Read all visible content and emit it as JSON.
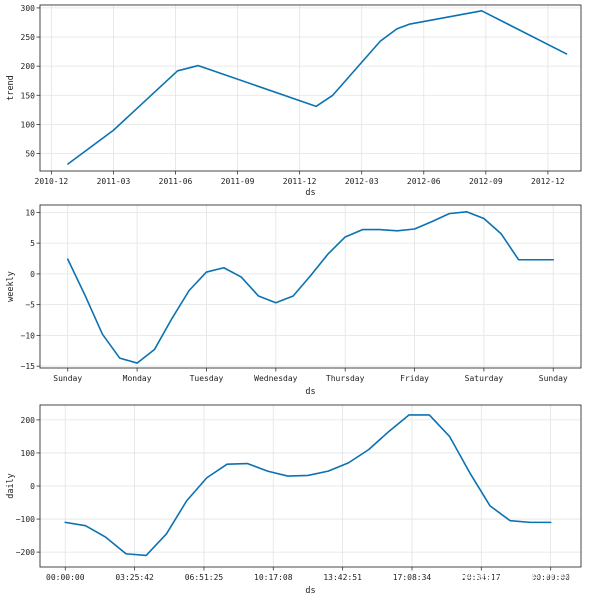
{
  "colors": {
    "line": "#0b72b2",
    "grid": "#e3e3e3",
    "frame": "#333333"
  },
  "watermark": "知乎 @HarHeimer",
  "chart_data": [
    {
      "type": "line",
      "id": "trend",
      "xlabel": "ds",
      "ylabel": "trend",
      "xlim": [
        -0.55,
        25.6
      ],
      "ylim": [
        20,
        305
      ],
      "xticks": [
        0,
        3,
        6,
        9,
        12,
        15,
        18,
        21,
        24
      ],
      "xtick_labels": [
        "2010-12",
        "2011-03",
        "2011-06",
        "2011-09",
        "2011-12",
        "2012-03",
        "2012-06",
        "2012-09",
        "2012-12"
      ],
      "yticks": [
        50,
        100,
        150,
        200,
        250,
        300
      ],
      "ytick_labels": [
        "50",
        "100",
        "150",
        "200",
        "250",
        "300"
      ],
      "grid": true,
      "series": [
        {
          "name": "trend",
          "x": [
            0.8,
            3.0,
            6.1,
            7.1,
            12.8,
            13.6,
            15.9,
            16.7,
            17.3,
            20.8,
            24.9
          ],
          "y": [
            32,
            90,
            192,
            201,
            131,
            150,
            243,
            264,
            272,
            295,
            221
          ]
        }
      ]
    },
    {
      "type": "line",
      "id": "weekly",
      "xlabel": "ds",
      "ylabel": "weekly",
      "xlim": [
        -0.4,
        7.4
      ],
      "ylim": [
        -15.3,
        11.2
      ],
      "xticks": [
        0,
        1,
        2,
        3,
        4,
        5,
        6,
        7
      ],
      "xtick_labels": [
        "Sunday",
        "Monday",
        "Tuesday",
        "Wednesday",
        "Thursday",
        "Friday",
        "Saturday",
        "Sunday"
      ],
      "yticks": [
        -15,
        -10,
        -5,
        0,
        5,
        10
      ],
      "ytick_labels": [
        "−15",
        "−10",
        "−5",
        "0",
        "5",
        "10"
      ],
      "grid": true,
      "series": [
        {
          "name": "weekly",
          "x": [
            0,
            0.25,
            0.5,
            0.75,
            1.0,
            1.25,
            1.5,
            1.75,
            2.0,
            2.25,
            2.5,
            2.75,
            3.0,
            3.25,
            3.5,
            3.75,
            4.0,
            4.25,
            4.5,
            4.75,
            5.0,
            5.25,
            5.5,
            5.75,
            6.0,
            6.25,
            6.5,
            6.75,
            7.0
          ],
          "y": [
            2.4,
            -3.5,
            -9.8,
            -13.7,
            -14.5,
            -12.3,
            -7.3,
            -2.7,
            0.3,
            1.0,
            -0.5,
            -3.6,
            -4.7,
            -3.6,
            -0.3,
            3.2,
            6.0,
            7.2,
            7.2,
            7.0,
            7.3,
            8.5,
            9.8,
            10.1,
            9.0,
            6.5,
            2.3,
            2.3,
            2.3
          ]
        }
      ]
    },
    {
      "type": "line",
      "id": "daily",
      "xlabel": "ds",
      "ylabel": "daily",
      "xlim": [
        -1.25,
        25.5
      ],
      "ylim": [
        -245,
        245
      ],
      "xticks": [
        0,
        3.4283,
        6.8569,
        10.2856,
        13.7142,
        17.1428,
        20.5714,
        24.0
      ],
      "xtick_labels": [
        "00:00:00",
        "03:25:42",
        "06:51:25",
        "10:17:08",
        "13:42:51",
        "17:08:34",
        "20:34:17",
        "00:00:00"
      ],
      "yticks": [
        -200,
        -100,
        0,
        100,
        200
      ],
      "ytick_labels": [
        "−200",
        "−100",
        "0",
        "100",
        "200"
      ],
      "grid": true,
      "series": [
        {
          "name": "daily",
          "x": [
            0,
            1,
            2,
            3,
            4,
            5,
            6,
            7,
            8,
            9,
            10,
            11,
            12,
            13,
            14,
            15,
            16,
            17,
            18,
            19,
            20,
            21,
            22,
            23,
            24
          ],
          "y": [
            -110,
            -120,
            -155,
            -205,
            -210,
            -145,
            -45,
            25,
            66,
            68,
            45,
            30,
            32,
            45,
            70,
            110,
            165,
            215,
            215,
            150,
            40,
            -60,
            -105,
            -110,
            -110
          ]
        }
      ]
    }
  ]
}
